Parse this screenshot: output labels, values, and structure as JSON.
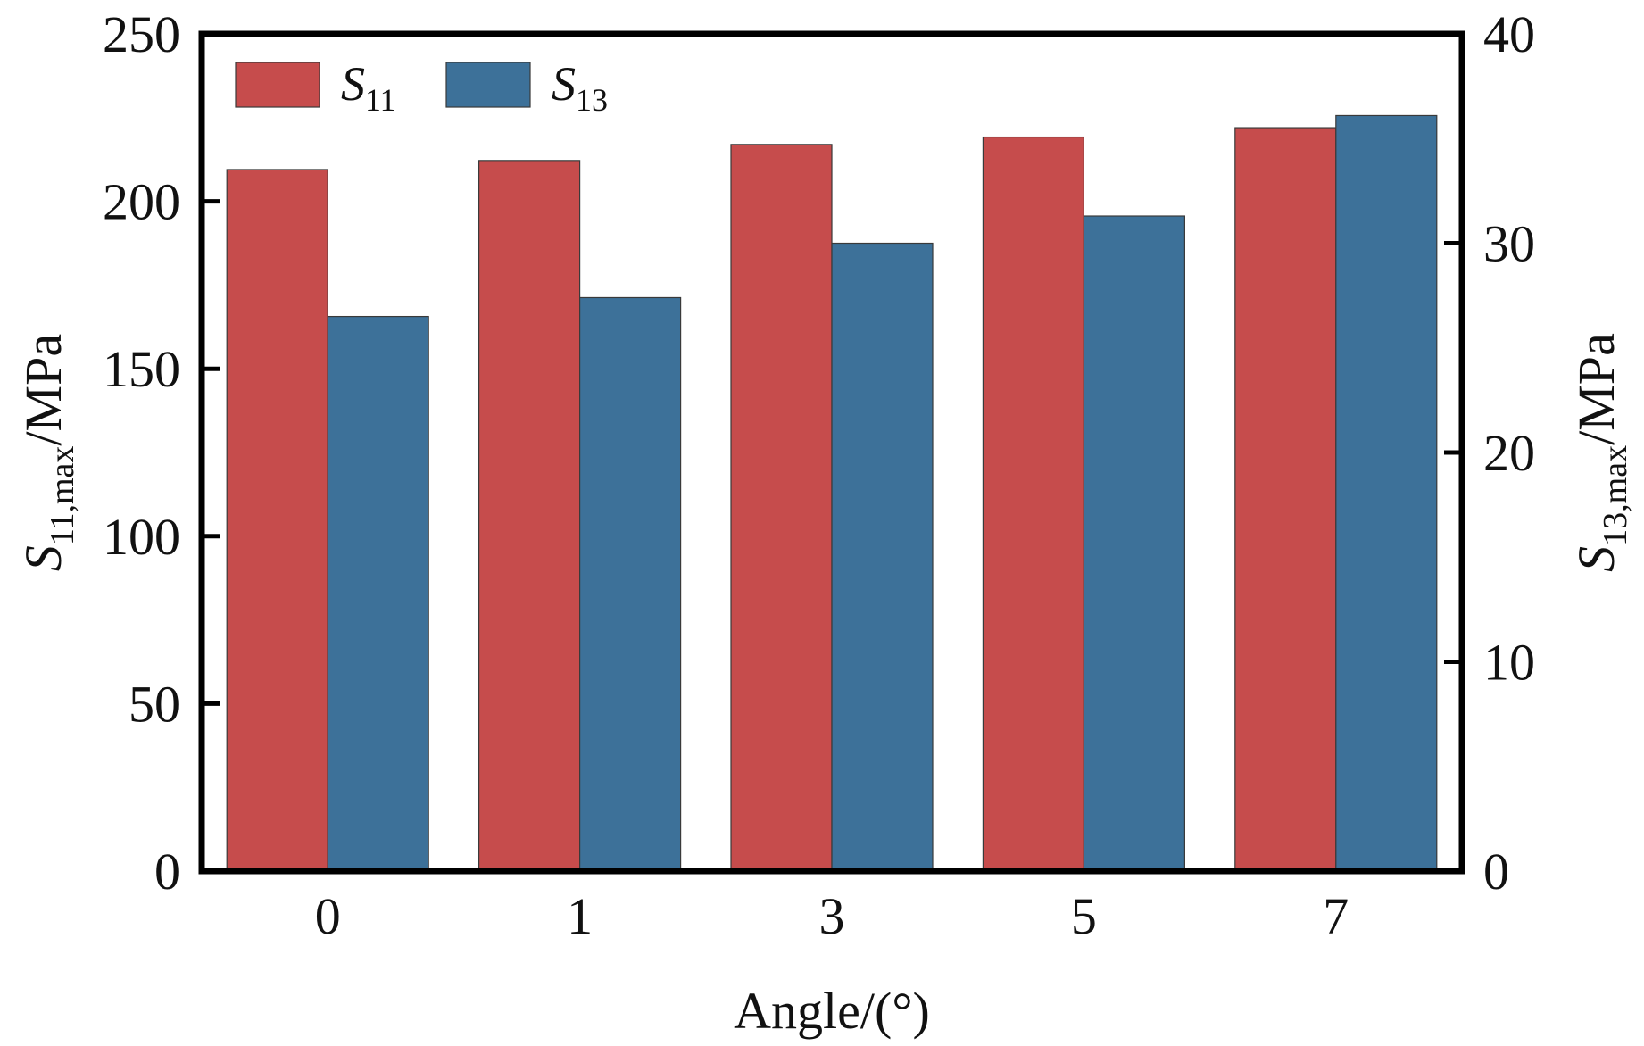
{
  "chart_data": {
    "type": "bar",
    "categories": [
      "0",
      "1",
      "3",
      "5",
      "7"
    ],
    "series": [
      {
        "name": "S11",
        "symbol": "S",
        "subscript": "11",
        "axis": "left",
        "color": "#c64c4c",
        "values": [
          209.5,
          212.2,
          217.0,
          219.2,
          222.0
        ]
      },
      {
        "name": "S13",
        "symbol": "S",
        "subscript": "13",
        "axis": "right",
        "color": "#3d7199",
        "values": [
          26.5,
          27.4,
          30.0,
          31.3,
          36.1
        ]
      }
    ],
    "xlabel": "Angle/(°)",
    "ylabel_left": {
      "symbol": "S",
      "subscript": "11,max",
      "unit": "/MPa"
    },
    "ylabel_right": {
      "symbol": "S",
      "subscript": "13,max",
      "unit": "/MPa"
    },
    "ylim_left": [
      0,
      250
    ],
    "ylim_right": [
      0,
      40
    ],
    "yticks_left": [
      "0",
      "50",
      "100",
      "150",
      "200",
      "250"
    ],
    "yticks_right": [
      "0",
      "10",
      "20",
      "30",
      "40"
    ],
    "legend": {
      "placement": "top-left",
      "entries": [
        "S11",
        "S13"
      ]
    },
    "grid": false
  }
}
